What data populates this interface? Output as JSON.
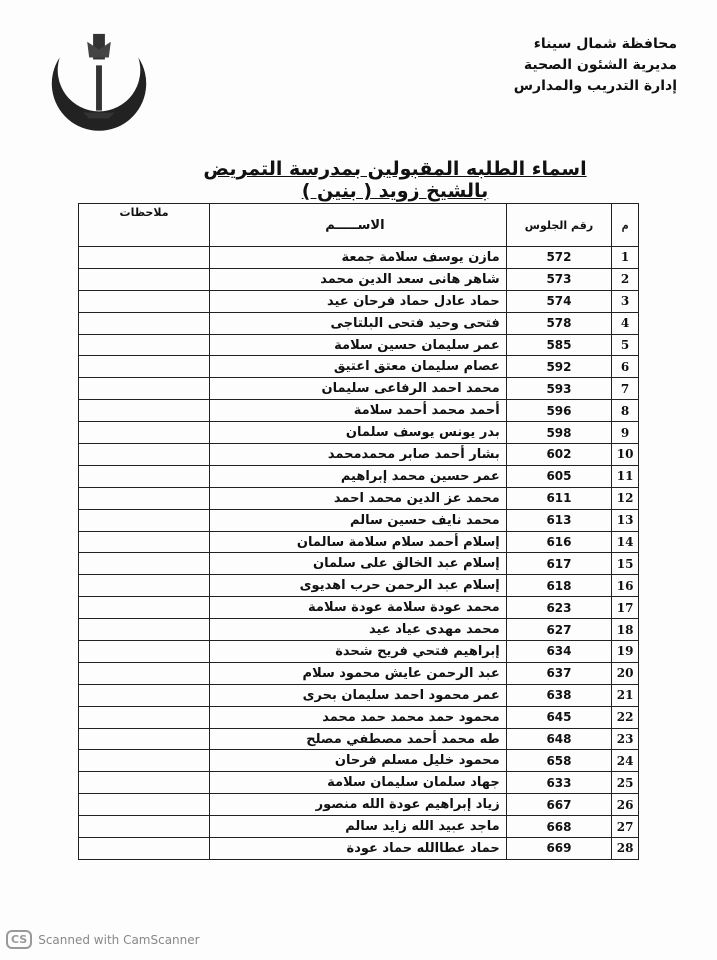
{
  "header": {
    "lines": [
      "محافظة شمال سيناء",
      "مديرية الشئون الصحية",
      "إدارة التدريب والمدارس"
    ],
    "logo_text": "مديرية الشئون الصحية محافظة شمال سيناء"
  },
  "title": "اسماء الطلبه المقبولين بمدرسة التمريض بالشيخ زويد ( بنين )",
  "table": {
    "headers": {
      "m": "م",
      "seat": "رقم الجلوس",
      "name": "الاســـــم",
      "notes": "ملاحظات"
    },
    "rows": [
      {
        "m": "1",
        "seat": "572",
        "name": "مازن يوسف سلامة جمعة"
      },
      {
        "m": "2",
        "seat": "573",
        "name": "شاهر هانى سعد الدين محمد"
      },
      {
        "m": "3",
        "seat": "574",
        "name": "حماد عادل حماد فرحان عيد"
      },
      {
        "m": "4",
        "seat": "578",
        "name": "فتحى وحيد فتحى البلتاجى"
      },
      {
        "m": "5",
        "seat": "585",
        "name": "عمر سليمان حسين سلامة"
      },
      {
        "m": "6",
        "seat": "592",
        "name": "عصام سليمان معتق اعتيق"
      },
      {
        "m": "7",
        "seat": "593",
        "name": "محمد احمد الرفاعى سليمان"
      },
      {
        "m": "8",
        "seat": "596",
        "name": "أحمد محمد أحمد سلامة"
      },
      {
        "m": "9",
        "seat": "598",
        "name": "بدر يونس يوسف سلمان"
      },
      {
        "m": "10",
        "seat": "602",
        "name": "بشار أحمد صابر محمدمحمد"
      },
      {
        "m": "11",
        "seat": "605",
        "name": "عمر حسين محمد إبراهيم"
      },
      {
        "m": "12",
        "seat": "611",
        "name": "محمد عز الدين محمد احمد"
      },
      {
        "m": "13",
        "seat": "613",
        "name": "محمد نايف حسين سالم"
      },
      {
        "m": "14",
        "seat": "616",
        "name": "إسلام أحمد سلام سلامة سالمان"
      },
      {
        "m": "15",
        "seat": "617",
        "name": "إسلام عبد الخالق على سلمان"
      },
      {
        "m": "16",
        "seat": "618",
        "name": "إسلام عبد الرحمن حرب اهديوى"
      },
      {
        "m": "17",
        "seat": "623",
        "name": "محمد عودة سلامة عودة سلامة"
      },
      {
        "m": "18",
        "seat": "627",
        "name": "محمد مهدى عياد عيد"
      },
      {
        "m": "19",
        "seat": "634",
        "name": "إبراهيم فتحي فريح شحدة"
      },
      {
        "m": "20",
        "seat": "637",
        "name": "عبد الرحمن عايش محمود سلام"
      },
      {
        "m": "21",
        "seat": "638",
        "name": "عمر محمود احمد سليمان بحرى"
      },
      {
        "m": "22",
        "seat": "645",
        "name": "محمود حمد محمد حمد محمد"
      },
      {
        "m": "23",
        "seat": "648",
        "name": "طه محمد أحمد مصطفي مصلح"
      },
      {
        "m": "24",
        "seat": "658",
        "name": "محمود خليل مسلم فرحان"
      },
      {
        "m": "25",
        "seat": "633",
        "name": "جهاد سلمان سليمان سلامة"
      },
      {
        "m": "26",
        "seat": "667",
        "name": "زياد إبراهيم عودة الله منصور"
      },
      {
        "m": "27",
        "seat": "668",
        "name": "ماجد عبيد الله زايد سالم"
      },
      {
        "m": "28",
        "seat": "669",
        "name": "حماد عطاالله حماد عودة"
      }
    ]
  },
  "footer": {
    "badge": "CS",
    "text": "Scanned with CamScanner"
  }
}
